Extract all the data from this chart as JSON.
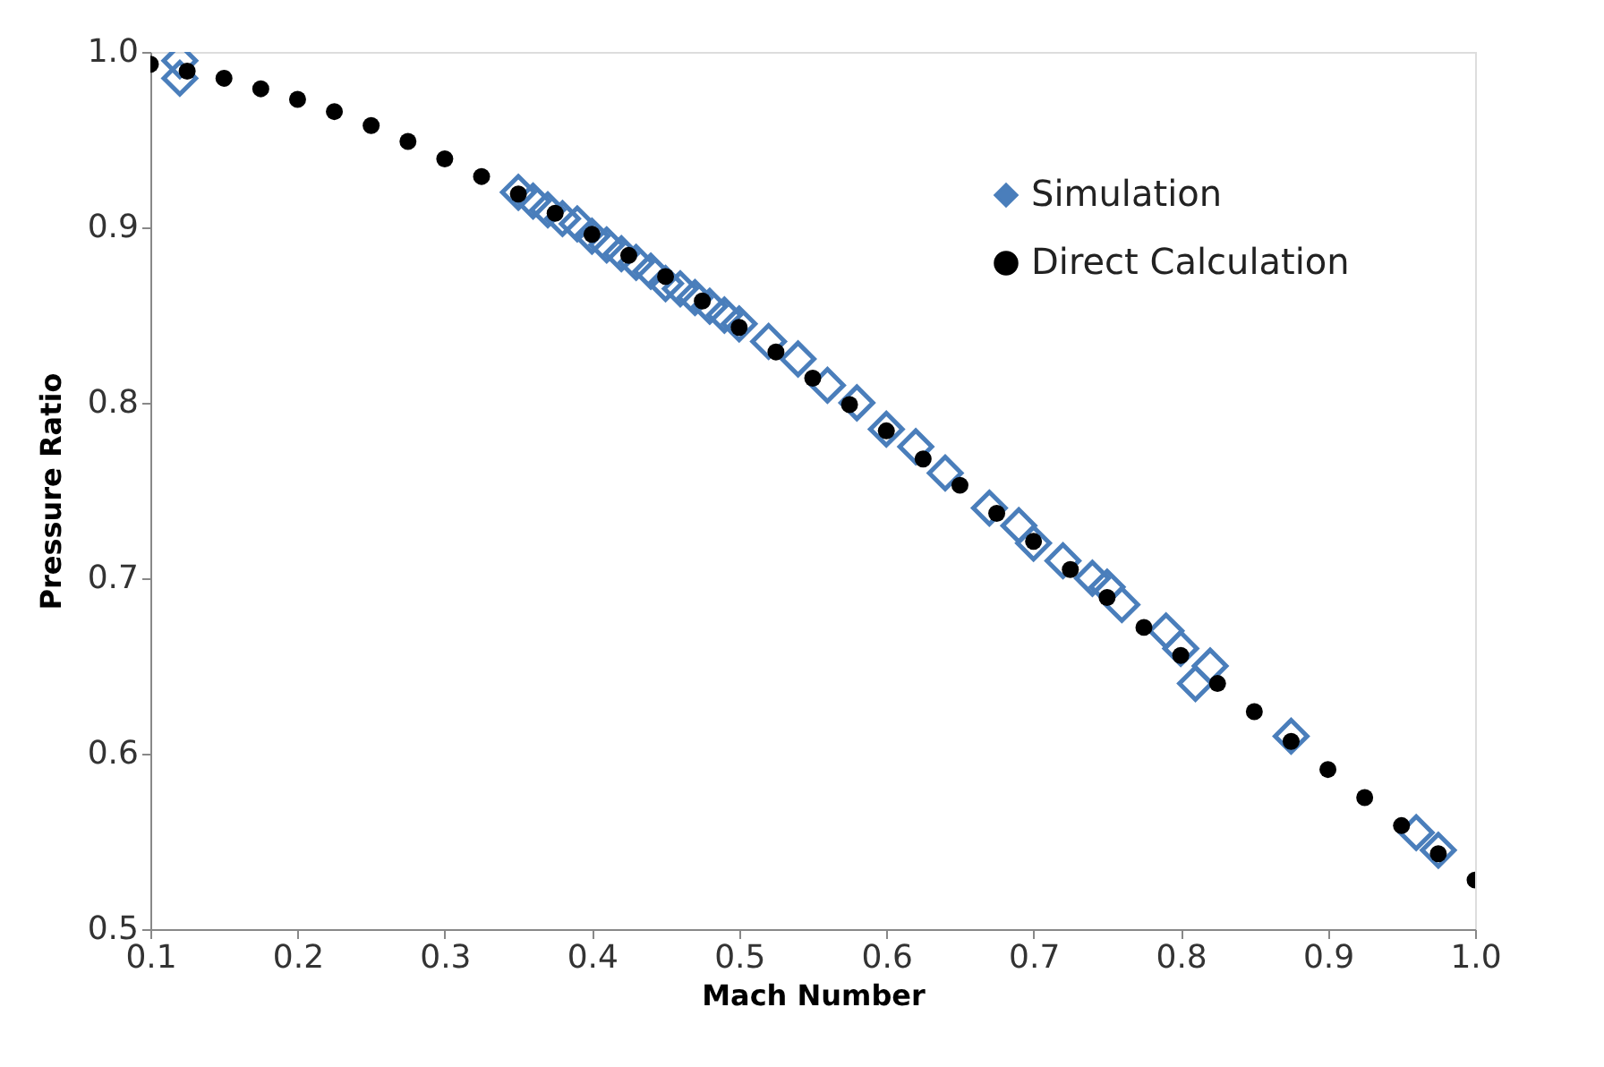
{
  "chart_data": {
    "type": "scatter",
    "xlabel": "Mach Number",
    "ylabel": "Pressure Ratio",
    "xlim": [
      0.1,
      1.0
    ],
    "xticks": [
      {
        "value": 0.1,
        "label": "0.1"
      },
      {
        "value": 0.2,
        "label": "0.2"
      },
      {
        "value": 0.3,
        "label": "0.3"
      },
      {
        "value": 0.4,
        "label": "0.4"
      },
      {
        "value": 0.5,
        "label": "0.5"
      },
      {
        "value": 0.6,
        "label": "0.6"
      },
      {
        "value": 0.7,
        "label": "0.7"
      },
      {
        "value": 0.8,
        "label": "0.8"
      },
      {
        "value": 0.9,
        "label": "0.9"
      },
      {
        "value": 1.0,
        "label": "1.0"
      }
    ],
    "ylim": [
      0.5,
      1.0
    ],
    "yticks": [
      {
        "value": 0.5,
        "label": "0.5"
      },
      {
        "value": 0.6,
        "label": "0.6"
      },
      {
        "value": 0.7,
        "label": "0.7"
      },
      {
        "value": 0.8,
        "label": "0.8"
      },
      {
        "value": 0.9,
        "label": "0.9"
      },
      {
        "value": 1.0,
        "label": "1.0"
      }
    ],
    "grid": false,
    "legend": "top right",
    "series": [
      {
        "name": "Simulation",
        "color": "#4a7ebb",
        "marker": "diamond",
        "x": [
          0.12,
          0.12,
          0.35,
          0.36,
          0.37,
          0.38,
          0.39,
          0.4,
          0.41,
          0.42,
          0.43,
          0.44,
          0.45,
          0.46,
          0.47,
          0.48,
          0.49,
          0.5,
          0.52,
          0.54,
          0.56,
          0.58,
          0.6,
          0.62,
          0.64,
          0.67,
          0.69,
          0.7,
          0.72,
          0.74,
          0.75,
          0.76,
          0.79,
          0.8,
          0.81,
          0.82,
          0.875,
          0.96,
          0.975
        ],
        "values": [
          0.985,
          0.995,
          0.92,
          0.915,
          0.91,
          0.905,
          0.902,
          0.895,
          0.89,
          0.885,
          0.88,
          0.875,
          0.868,
          0.865,
          0.86,
          0.855,
          0.85,
          0.845,
          0.835,
          0.825,
          0.81,
          0.8,
          0.785,
          0.775,
          0.76,
          0.74,
          0.73,
          0.72,
          0.71,
          0.7,
          0.695,
          0.685,
          0.67,
          0.66,
          0.64,
          0.65,
          0.61,
          0.555,
          0.545
        ]
      },
      {
        "name": "Direct Calculation",
        "color": "#000000",
        "marker": "circle",
        "x": [
          0.1,
          0.125,
          0.15,
          0.175,
          0.2,
          0.225,
          0.25,
          0.275,
          0.3,
          0.325,
          0.35,
          0.375,
          0.4,
          0.425,
          0.45,
          0.475,
          0.5,
          0.525,
          0.55,
          0.575,
          0.6,
          0.625,
          0.65,
          0.675,
          0.7,
          0.725,
          0.75,
          0.775,
          0.8,
          0.825,
          0.85,
          0.875,
          0.9,
          0.925,
          0.95,
          0.975,
          1.0
        ],
        "values": [
          0.993,
          0.989,
          0.985,
          0.979,
          0.973,
          0.966,
          0.958,
          0.949,
          0.939,
          0.929,
          0.919,
          0.908,
          0.896,
          0.884,
          0.872,
          0.858,
          0.843,
          0.829,
          0.814,
          0.799,
          0.784,
          0.768,
          0.753,
          0.737,
          0.721,
          0.705,
          0.689,
          0.672,
          0.656,
          0.64,
          0.624,
          0.607,
          0.591,
          0.575,
          0.559,
          0.543,
          0.528
        ]
      }
    ]
  }
}
